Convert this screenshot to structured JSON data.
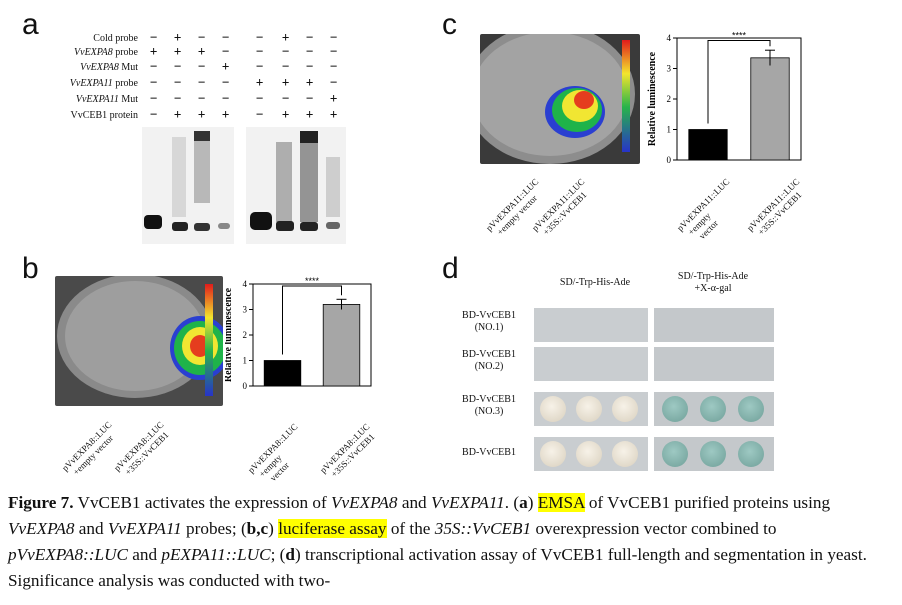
{
  "panel_a": {
    "letter": "a",
    "rows": [
      {
        "label": "Cold probe",
        "signs": [
          "−",
          "+",
          "−",
          "−",
          "−",
          "+",
          "−",
          "−"
        ]
      },
      {
        "label_it": "VvEXPA8",
        "label_rest": " probe",
        "signs": [
          "+",
          "+",
          "+",
          "−",
          "−",
          "−",
          "−",
          "−"
        ]
      },
      {
        "label_it": "VvEXPA8",
        "label_rest": " Mut",
        "signs": [
          "−",
          "−",
          "−",
          "+",
          "−",
          "−",
          "−",
          "−"
        ]
      },
      {
        "label_it": "VvEXPA11",
        "label_rest": " probe",
        "signs": [
          "−",
          "−",
          "−",
          "−",
          "+",
          "+",
          "+",
          "−"
        ]
      },
      {
        "label_it": "VvEXPA11",
        "label_rest": " Mut",
        "signs": [
          "−",
          "−",
          "−",
          "−",
          "−",
          "−",
          "−",
          "+"
        ]
      },
      {
        "label": "VvCEB1 protein",
        "signs": [
          "−",
          "+",
          "+",
          "+",
          "−",
          "+",
          "+",
          "+"
        ]
      }
    ]
  },
  "panel_b": {
    "letter": "b",
    "leaf_labels": [
      "pVvEXPA8::LUC\n+empty vector",
      "pVvEXPA8::LUC\n+35S::VvCEB1"
    ],
    "chart_data": {
      "type": "bar",
      "categories": [
        "pVvEXPA8::LUC +empty vector",
        "pVvEXPA8::LUC +35S::VvCEB1"
      ],
      "values": [
        1,
        3.2
      ],
      "errors": [
        0,
        0.2
      ],
      "ylabel": "Relative luminescence",
      "ylim": [
        0,
        4
      ],
      "yticks": [
        "0",
        "1",
        "2",
        "3",
        "4"
      ],
      "significance": "****",
      "colors": [
        "#000000",
        "#a6a6a6"
      ]
    }
  },
  "panel_c": {
    "letter": "c",
    "leaf_labels": [
      "pVvEXPA11::LUC\n+empty vector",
      "pVvEXPA11::LUC\n+35S::VvCEB1"
    ],
    "chart_data": {
      "type": "bar",
      "categories": [
        "pVvEXPA11::LUC +empty vector",
        "pVvEXPA11::LUC +35S::VvCEB1"
      ],
      "values": [
        1,
        3.35
      ],
      "errors": [
        0,
        0.25
      ],
      "ylabel": "Relative luminescence",
      "ylim": [
        0,
        4
      ],
      "yticks": [
        "0",
        "1",
        "2",
        "3",
        "4"
      ],
      "significance": "****",
      "colors": [
        "#000000",
        "#a6a6a6"
      ]
    }
  },
  "panel_d": {
    "letter": "d",
    "columns": [
      "SD/-Trp-His-Ade",
      "SD/-Trp-His-Ade\n+X-α-gal"
    ],
    "rows": [
      "BD-VvCEB1\n(NO.1)",
      "BD-VvCEB1\n(NO.2)",
      "BD-VvCEB1\n(NO.3)",
      "BD-VvCEB1"
    ]
  },
  "caption": {
    "fig": "Figure 7.",
    "t1": " VvCEB1 activates the expression of ",
    "g1": "VvEXPA8",
    "t2": " and ",
    "g2": "VvEXPA11",
    "t3": ". (",
    "a": "a",
    "t4": ") ",
    "emsa": "EMSA",
    "t5": " of VvCEB1 purified proteins using ",
    "g3": "VvEXPA8",
    "t6": " and ",
    "g4": "VvEXPA11",
    "t7": " probes; (",
    "bc": "b,c",
    "t8": ") ",
    "luc": "luciferase assay",
    "t9": " of the ",
    "g5": "35S::VvCEB1",
    "t10": " overexpression vector combined to ",
    "g6": "pVvEXPA8::LUC",
    "t11": " and ",
    "g7": "pEXPA11::LUC",
    "t12": "; (",
    "d": "d",
    "t13": ") transcriptional activation assay of VvCEB1 full-length and segmentation in yeast. Significance analysis was conducted with two-"
  }
}
